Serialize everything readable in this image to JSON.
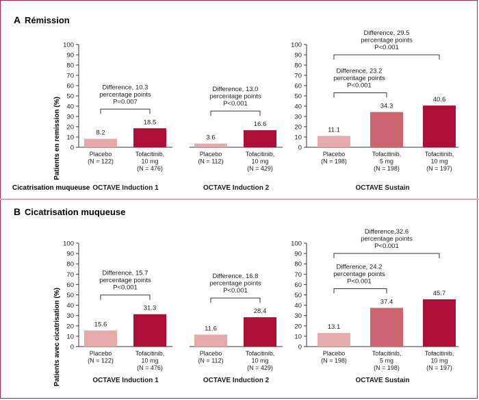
{
  "panels": [
    {
      "letter": "A",
      "title": "Rémission",
      "ylabel": "Patients en remission (%)",
      "cross_label": "Cicatrisation muqueuse"
    },
    {
      "letter": "B",
      "title": "Cicatrisation muqueuse",
      "ylabel": "Patients avec cicatrisation (%)",
      "cross_label": ""
    }
  ],
  "colors": {
    "placebo": "#e6a9a9",
    "tofa5": "#cd6570",
    "tofa10": "#ae0f39",
    "axis": "#333333",
    "text": "#1a1a1a"
  },
  "chart_data": [
    {
      "type": "bar",
      "panel": "A",
      "study": "OCTAVE Induction 1",
      "ylim": [
        0,
        100
      ],
      "yticks": [
        0,
        10,
        20,
        30,
        40,
        50,
        60,
        70,
        80,
        90,
        100
      ],
      "categories": [
        [
          "Placebo",
          "(N = 122)"
        ],
        [
          "Tofacitinib,",
          "10 mg",
          "(N = 476)"
        ]
      ],
      "values": [
        8.2,
        18.5
      ],
      "value_labels": [
        "8.2",
        "18.5"
      ],
      "bar_colors": [
        "placebo",
        "tofa10"
      ],
      "comparisons": [
        {
          "from": 0,
          "to": 1,
          "lines": [
            "Difference, 10.3",
            "percentage points",
            "P=0.007"
          ]
        }
      ]
    },
    {
      "type": "bar",
      "panel": "A",
      "study": "OCTAVE Induction 2",
      "ylim": [
        0,
        100
      ],
      "categories": [
        [
          "Placebo",
          "(N = 112)"
        ],
        [
          "Tofacitinib,",
          "10 mg",
          "(N = 429)"
        ]
      ],
      "values": [
        3.6,
        16.6
      ],
      "value_labels": [
        "3.6",
        "16.6"
      ],
      "bar_colors": [
        "placebo",
        "tofa10"
      ],
      "comparisons": [
        {
          "from": 0,
          "to": 1,
          "lines": [
            "Difference, 13.0",
            "percentage points",
            "P<0.001"
          ]
        }
      ]
    },
    {
      "type": "bar",
      "panel": "A",
      "study": "OCTAVE Sustain",
      "ylim": [
        0,
        100
      ],
      "yticks": [
        0,
        10,
        20,
        30,
        40,
        50,
        60,
        70,
        80,
        90,
        100
      ],
      "categories": [
        [
          "Placebo",
          "(N = 198)"
        ],
        [
          "Tofacitinib,",
          "5 mg",
          "(N = 198)"
        ],
        [
          "Tofacitinib,",
          "10 mg",
          "(N = 197)"
        ]
      ],
      "values": [
        11.1,
        34.3,
        40.6
      ],
      "value_labels": [
        "11.1",
        "34.3",
        "40.6"
      ],
      "bar_colors": [
        "placebo",
        "tofa5",
        "tofa10"
      ],
      "comparisons": [
        {
          "from": 0,
          "to": 1,
          "lines": [
            "Difference, 23.2",
            "percentage points",
            "P<0.001"
          ]
        },
        {
          "from": 0,
          "to": 2,
          "lines": [
            "Difference, 29.5",
            "percentage points",
            "P<0.001"
          ]
        }
      ]
    },
    {
      "type": "bar",
      "panel": "B",
      "study": "OCTAVE Induction 1",
      "ylim": [
        0,
        100
      ],
      "yticks": [
        0,
        10,
        20,
        30,
        40,
        50,
        60,
        70,
        80,
        90,
        100
      ],
      "categories": [
        [
          "Placebo",
          "(N = 122)"
        ],
        [
          "Tofacitinib,",
          "10 mg",
          "(N = 476)"
        ]
      ],
      "values": [
        15.6,
        31.3
      ],
      "value_labels": [
        "15.6",
        "31.3"
      ],
      "bar_colors": [
        "placebo",
        "tofa10"
      ],
      "comparisons": [
        {
          "from": 0,
          "to": 1,
          "lines": [
            "Difference, 15.7",
            "percentage points",
            "P<0.001"
          ]
        }
      ]
    },
    {
      "type": "bar",
      "panel": "B",
      "study": "OCTAVE Induction 2",
      "ylim": [
        0,
        100
      ],
      "categories": [
        [
          "Placebo",
          "(N = 112)"
        ],
        [
          "Tofacitinib,",
          "10 mg",
          "(N = 429)"
        ]
      ],
      "values": [
        11.6,
        28.4
      ],
      "value_labels": [
        "11.6",
        "28.4"
      ],
      "bar_colors": [
        "placebo",
        "tofa10"
      ],
      "comparisons": [
        {
          "from": 0,
          "to": 1,
          "lines": [
            "Difference, 16.8",
            "percentage points",
            "P<0.001"
          ]
        }
      ]
    },
    {
      "type": "bar",
      "panel": "B",
      "study": "OCTAVE Sustain",
      "ylim": [
        0,
        100
      ],
      "yticks": [
        0,
        10,
        20,
        30,
        40,
        50,
        60,
        70,
        80,
        90,
        100
      ],
      "categories": [
        [
          "Placebo",
          "(N = 198)"
        ],
        [
          "Tofacitinib,",
          "5 mg",
          "(N = 198)"
        ],
        [
          "Tofacitinib,",
          "10 mg",
          "(N = 197)"
        ]
      ],
      "values": [
        13.1,
        37.4,
        45.7
      ],
      "value_labels": [
        "13.1",
        "37.4",
        "45.7"
      ],
      "bar_colors": [
        "placebo",
        "tofa5",
        "tofa10"
      ],
      "comparisons": [
        {
          "from": 0,
          "to": 1,
          "lines": [
            "Difference, 24.2",
            "percentage points",
            "P<0.001"
          ]
        },
        {
          "from": 0,
          "to": 2,
          "lines": [
            "Difference,32.6",
            "percentage points",
            "P<0.001"
          ]
        }
      ]
    }
  ]
}
